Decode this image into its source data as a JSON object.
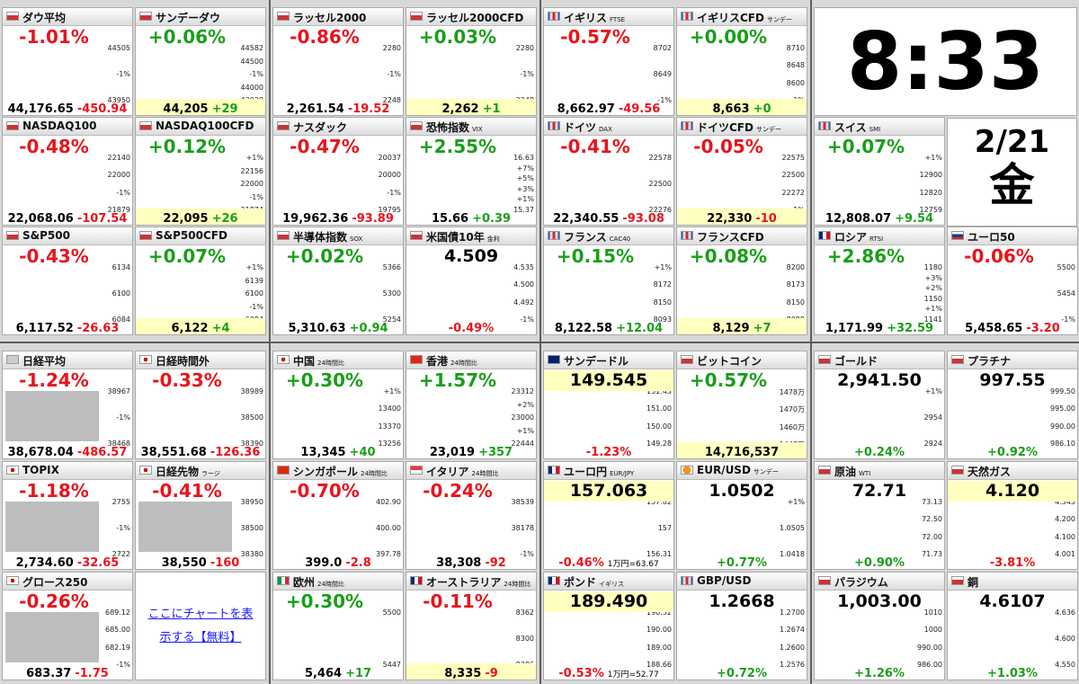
{
  "clock": {
    "time": "8:33",
    "date": "2/21",
    "weekday": "金"
  },
  "link": "ここにチャートを表示する【無料】",
  "tiles": [
    {
      "name": "ダウ平均",
      "big": "-1.01%",
      "price": "44,176.65",
      "change": "-450.94",
      "axis": [
        "44505",
        "-1%",
        "43950"
      ],
      "trend": "down"
    },
    {
      "name": "サンデーダウ",
      "big": "+0.06%",
      "price": "44,205",
      "change": "+29",
      "axis": [
        "44582",
        "44500",
        "-1%",
        "44000",
        "43928"
      ],
      "trend": "up",
      "cfd": true
    },
    {
      "name": "NASDAQ100",
      "big": "-0.48%",
      "price": "22,068.06",
      "change": "-107.54",
      "axis": [
        "22140",
        "22000",
        "-1%",
        "21879"
      ],
      "trend": "down"
    },
    {
      "name": "NASDAQ100CFD",
      "big": "+0.12%",
      "price": "22,095",
      "change": "+26",
      "axis": [
        "+1%",
        "22156",
        "22000",
        "-1%",
        "21874"
      ],
      "trend": "up",
      "cfd": true
    },
    {
      "name": "S&P500",
      "big": "-0.43%",
      "price": "6,117.52",
      "change": "-26.63",
      "axis": [
        "6134",
        "6100",
        "6084"
      ],
      "trend": "down"
    },
    {
      "name": "S&P500CFD",
      "big": "+0.07%",
      "price": "6,122",
      "change": "+4",
      "axis": [
        "+1%",
        "6139",
        "6100",
        "-1%",
        "6084"
      ],
      "trend": "up",
      "cfd": true
    },
    {
      "name": "ラッセル2000",
      "big": "-0.86%",
      "price": "2,261.54",
      "change": "-19.52",
      "axis": [
        "2280",
        "-1%",
        "2248"
      ],
      "trend": "down"
    },
    {
      "name": "ラッセル2000CFD",
      "big": "+0.03%",
      "price": "2,262",
      "change": "+1",
      "axis": [
        "2280",
        "-1%",
        "2248"
      ],
      "trend": "up",
      "cfd": true
    },
    {
      "name": "ナスダック",
      "big": "-0.47%",
      "price": "19,962.36",
      "change": "-93.89",
      "axis": [
        "20037",
        "20000",
        "-1%",
        "19795"
      ],
      "trend": "down"
    },
    {
      "name": "恐怖指数",
      "sub": "VIX",
      "big": "+2.55%",
      "price": "15.66",
      "change": "+0.39",
      "axis": [
        "16.63",
        "+7%",
        "+5%",
        "+3%",
        "+1%",
        "15.37"
      ],
      "trend": "up"
    },
    {
      "name": "半導体指数",
      "sub": "SOX",
      "big": "+0.02%",
      "price": "5,310.63",
      "change": "+0.94",
      "axis": [
        "5366",
        "5300",
        "5254"
      ],
      "trend": "up"
    },
    {
      "name": "米国債10年",
      "sub": "金利",
      "big": "4.509",
      "change": "-0.49%",
      "axis": [
        "4.535",
        "4.500",
        "4.492",
        "-1%"
      ],
      "trend": "down",
      "layout": "price"
    },
    {
      "name": "イギリス",
      "sub": "FTSE",
      "big": "-0.57%",
      "price": "8,662.97",
      "change": "-49.56",
      "axis": [
        "8702",
        "8649",
        "-1%"
      ],
      "trend": "down"
    },
    {
      "name": "イギリスCFD",
      "sub": "サンデー",
      "big": "+0.00%",
      "price": "8,663",
      "change": "+0",
      "axis": [
        "8710",
        "8648",
        "8600",
        "-1%"
      ],
      "trend": "up",
      "cfd": true
    },
    {
      "name": "ドイツ",
      "sub": "DAX",
      "big": "-0.41%",
      "price": "22,340.55",
      "change": "-93.08",
      "axis": [
        "22578",
        "22500",
        "22276"
      ],
      "trend": "down"
    },
    {
      "name": "ドイツCFD",
      "sub": "サンデー",
      "big": "-0.05%",
      "price": "22,330",
      "change": "-10",
      "axis": [
        "22575",
        "22500",
        "22272",
        "-1%"
      ],
      "trend": "down",
      "cfd": true
    },
    {
      "name": "フランス",
      "sub": "CAC40",
      "big": "+0.15%",
      "price": "8,122.58",
      "change": "+12.04",
      "axis": [
        "+1%",
        "8172",
        "8150",
        "8093"
      ],
      "trend": "up"
    },
    {
      "name": "フランスCFD",
      "big": "+0.08%",
      "price": "8,129",
      "change": "+7",
      "axis": [
        "8200",
        "8173",
        "8150",
        "8099"
      ],
      "trend": "up",
      "cfd": true
    },
    {
      "name": "スイス",
      "sub": "SMI",
      "big": "+0.07%",
      "price": "12,808.07",
      "change": "+9.54",
      "axis": [
        "+1%",
        "12900",
        "12820",
        "12759"
      ],
      "trend": "up"
    },
    {
      "name": "ロシア",
      "sub": "RTSI",
      "big": "+2.86%",
      "price": "1,171.99",
      "change": "+32.59",
      "axis": [
        "1180",
        "+3%",
        "+2%",
        "1150",
        "+1%",
        "1141"
      ],
      "trend": "up"
    },
    {
      "name": "ユーロ50",
      "big": "-0.06%",
      "price": "5,458.65",
      "change": "-3.20",
      "axis": [
        "5500",
        "5454",
        "-1%"
      ],
      "trend": "down"
    },
    {
      "name": "日経平均",
      "big": "-1.24%",
      "price": "38,678.04",
      "change": "-486.57",
      "axis": [
        "38967",
        "-1%",
        "38468"
      ],
      "trend": "down"
    },
    {
      "name": "日経時間外",
      "big": "-0.33%",
      "price": "38,551.68",
      "change": "-126.36",
      "axis": [
        "38989",
        "38500",
        "38390"
      ],
      "trend": "down"
    },
    {
      "name": "TOPIX",
      "big": "-1.18%",
      "price": "2,734.60",
      "change": "-32.65",
      "axis": [
        "2755",
        "-1%",
        "2722"
      ],
      "trend": "down"
    },
    {
      "name": "日経先物",
      "sub": "ラージ",
      "big": "-0.41%",
      "price": "38,550",
      "change": "-160",
      "axis": [
        "38950",
        "38500",
        "38380"
      ],
      "trend": "down"
    },
    {
      "name": "グロース250",
      "big": "-0.26%",
      "price": "683.37",
      "change": "-1.75",
      "axis": [
        "689.12",
        "685.00",
        "682.19",
        "-1%"
      ],
      "trend": "down"
    },
    {
      "name": "中国",
      "sub": "24時間比",
      "big": "+0.30%",
      "price": "13,345",
      "change": "+40",
      "axis": [
        "+1%",
        "13400",
        "13370",
        "13256"
      ],
      "trend": "up"
    },
    {
      "name": "香港",
      "sub": "24時間比",
      "big": "+1.57%",
      "price": "23,019",
      "change": "+357",
      "axis": [
        "23312",
        "+2%",
        "23000",
        "+1%",
        "22444"
      ],
      "trend": "up"
    },
    {
      "name": "シンガポール",
      "sub": "24時間比",
      "big": "-0.70%",
      "price": "399.0",
      "change": "-2.8",
      "axis": [
        "402.90",
        "400.00",
        "397.78"
      ],
      "trend": "down"
    },
    {
      "name": "イタリア",
      "sub": "24時間比",
      "big": "-0.24%",
      "price": "38,308",
      "change": "-92",
      "axis": [
        "38539",
        "38178",
        "-1%"
      ],
      "trend": "down"
    },
    {
      "name": "欧州",
      "sub": "24時間比",
      "big": "+0.30%",
      "price": "5,464",
      "change": "+17",
      "axis": [
        "5500",
        "5447"
      ],
      "trend": "up"
    },
    {
      "name": "オーストラリア",
      "sub": "24時間比",
      "big": "-0.11%",
      "price": "8,335",
      "change": "-9",
      "axis": [
        "8362",
        "8300",
        "8286"
      ],
      "trend": "down",
      "cfd": true
    },
    {
      "name": "サンデードル",
      "big": "149.545",
      "change": "-1.23%",
      "axis": [
        "151.43",
        "151.00",
        "150.00",
        "149.28"
      ],
      "trend": "down",
      "layout": "price",
      "cfd": true
    },
    {
      "name": "ビットコイン",
      "big": "+0.57%",
      "price": "14,716,537",
      "axis": [
        "1478万",
        "1470万",
        "1460万",
        "1447万"
      ],
      "trend": "up",
      "cfd": true
    },
    {
      "name": "ユーロ円",
      "sub": "EUR/JPY",
      "big": "157.063",
      "change": "-0.46%",
      "note": "1万円=63.67",
      "axis": [
        "157.82",
        "157",
        "156.31"
      ],
      "trend": "down",
      "layout": "price",
      "cfd": true
    },
    {
      "name": "EUR/USD",
      "sub": "サンデー",
      "big": "1.0502",
      "change": "+0.77%",
      "axis": [
        "+1%",
        "1.0505",
        "1.0418"
      ],
      "trend": "up",
      "layout": "price"
    },
    {
      "name": "ポンド",
      "sub": "イギリス",
      "big": "189.490",
      "change": "-0.53%",
      "note": "1万円=52.77",
      "axis": [
        "190.52",
        "190.00",
        "189.00",
        "188.66"
      ],
      "trend": "down",
      "layout": "price",
      "cfd": true
    },
    {
      "name": "GBP/USD",
      "big": "1.2668",
      "change": "+0.72%",
      "axis": [
        "1.2700",
        "1.2674",
        "1.2600",
        "1.2576"
      ],
      "trend": "up",
      "layout": "price"
    },
    {
      "name": "ゴールド",
      "big": "2,941.50",
      "change": "+0.24%",
      "axis": [
        "+1%",
        "2954",
        "2924"
      ],
      "trend": "up",
      "layout": "price"
    },
    {
      "name": "プラチナ",
      "big": "997.55",
      "change": "+0.92%",
      "axis": [
        "999.50",
        "995.00",
        "990.00",
        "986.10"
      ],
      "trend": "up",
      "layout": "price"
    },
    {
      "name": "原油",
      "sub": "WTI",
      "big": "72.71",
      "change": "+0.90%",
      "axis": [
        "73.13",
        "72.50",
        "72.00",
        "71.73"
      ],
      "trend": "up",
      "layout": "price"
    },
    {
      "name": "天然ガス",
      "big": "4.120",
      "change": "-3.81%",
      "axis": [
        "4.345",
        "4.200",
        "4.100",
        "4.001"
      ],
      "trend": "down",
      "layout": "price",
      "cfd": true
    },
    {
      "name": "パラジウム",
      "big": "1,003.00",
      "change": "+1.26%",
      "axis": [
        "1010",
        "1000",
        "990.00",
        "986.00"
      ],
      "trend": "up",
      "layout": "price"
    },
    {
      "name": "銅",
      "big": "4.6107",
      "change": "+1.03%",
      "axis": [
        "4.636",
        "4.600",
        "4.550"
      ],
      "trend": "up",
      "layout": "price"
    }
  ]
}
